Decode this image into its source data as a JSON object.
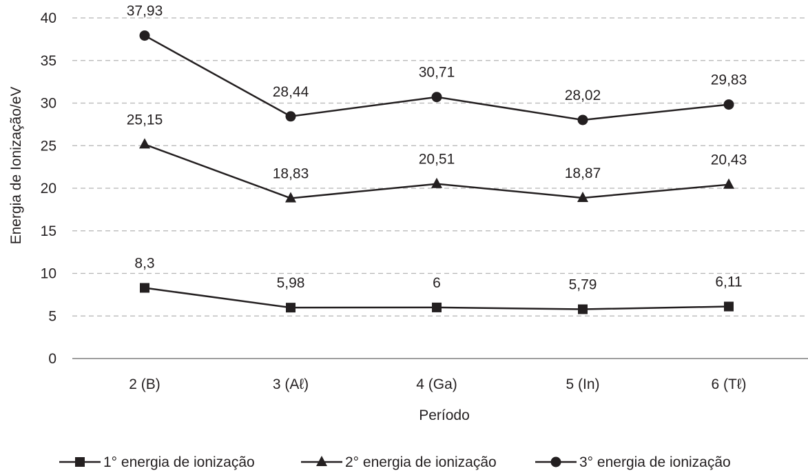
{
  "chart_data": {
    "type": "line",
    "xlabel": "Período",
    "ylabel": "Energia de Ionização/eV",
    "categories": [
      "2 (B)",
      "3 (Aℓ)",
      "4 (Ga)",
      "5 (In)",
      "6 (Tℓ)"
    ],
    "ylim": [
      0,
      40
    ],
    "yticks": [
      0,
      5,
      10,
      15,
      20,
      25,
      30,
      35,
      40
    ],
    "grid": true,
    "legend_position": "bottom",
    "series": [
      {
        "name": "1° energia de ionização",
        "marker": "square",
        "values": [
          8.3,
          5.98,
          6,
          5.79,
          6.11
        ],
        "labels": [
          "8,3",
          "5,98",
          "6",
          "5,79",
          "6,11"
        ]
      },
      {
        "name": "2° energia de ionização",
        "marker": "triangle",
        "values": [
          25.15,
          18.83,
          20.51,
          18.87,
          20.43
        ],
        "labels": [
          "25,15",
          "18,83",
          "20,51",
          "18,87",
          "20,43"
        ]
      },
      {
        "name": "3° energia de ionização",
        "marker": "circle",
        "values": [
          37.93,
          28.44,
          30.71,
          28.02,
          29.83
        ],
        "labels": [
          "37,93",
          "28,44",
          "30,71",
          "28,02",
          "29,83"
        ]
      }
    ]
  }
}
